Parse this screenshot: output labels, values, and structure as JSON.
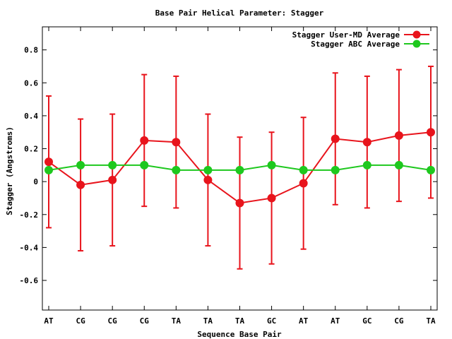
{
  "chart_data": {
    "type": "line",
    "title": "Base Pair Helical Parameter: Stagger",
    "xlabel": "Sequence Base Pair",
    "ylabel": "Stagger (Angstroms)",
    "categories": [
      "AT",
      "CG",
      "CG",
      "CG",
      "TA",
      "TA",
      "TA",
      "GC",
      "AT",
      "AT",
      "GC",
      "CG",
      "TA"
    ],
    "ylim": [
      -0.78,
      0.94
    ],
    "yticks": [
      -0.6,
      -0.4,
      -0.2,
      0,
      0.2,
      0.4,
      0.6,
      0.8
    ],
    "ytick_labels": [
      "-0.6",
      "-0.4",
      "-0.2",
      "0",
      "0.2",
      "0.4",
      "0.6",
      "0.8"
    ],
    "grid": false,
    "legend_position": "top-right",
    "series": [
      {
        "name": "Stagger User-MD Average",
        "color": "#e8141c",
        "values": [
          0.12,
          -0.02,
          0.01,
          0.25,
          0.24,
          0.01,
          -0.13,
          -0.1,
          -0.01,
          0.26,
          0.24,
          0.28,
          0.3
        ],
        "error": [
          0.4,
          0.4,
          0.4,
          0.4,
          0.4,
          0.4,
          0.4,
          0.4,
          0.4,
          0.4,
          0.4,
          0.4,
          0.4
        ]
      },
      {
        "name": "Stagger ABC Average",
        "color": "#1ec81e",
        "values": [
          0.07,
          0.1,
          0.1,
          0.1,
          0.07,
          0.07,
          0.07,
          0.1,
          0.07,
          0.07,
          0.1,
          0.1,
          0.07
        ]
      }
    ]
  }
}
